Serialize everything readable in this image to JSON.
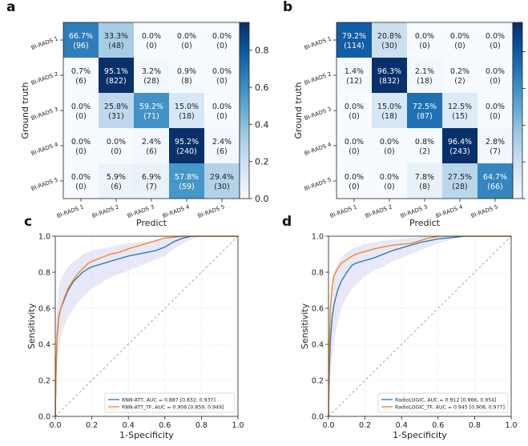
{
  "figure": {
    "background": "#ffffff"
  },
  "chart_data": [
    {
      "panel": "a",
      "type": "heatmap",
      "xlabel": "Predict",
      "ylabel": "Ground truth",
      "x_categories": [
        "BI-RADS 1",
        "BI-RADS 2",
        "BI-RADS 3",
        "BI-RADS 4",
        "BI-RADS 5"
      ],
      "y_categories": [
        "BI-RADS 1",
        "BI-RADS 2",
        "BI-RADS 3",
        "BI-RADS 4",
        "BI-RADS 5"
      ],
      "percents": [
        [
          "66.7%",
          "33.3%",
          "0.0%",
          "0.0%",
          "0.0%"
        ],
        [
          "0.7%",
          "95.1%",
          "3.2%",
          "0.9%",
          "0.0%"
        ],
        [
          "0.0%",
          "25.8%",
          "59.2%",
          "15.0%",
          "0.0%"
        ],
        [
          "0.0%",
          "0.0%",
          "2.4%",
          "95.2%",
          "2.4%"
        ],
        [
          "0.0%",
          "5.9%",
          "6.9%",
          "57.8%",
          "29.4%"
        ]
      ],
      "counts": [
        [
          "(96)",
          "(48)",
          "(0)",
          "(0)",
          "(0)"
        ],
        [
          "(6)",
          "(822)",
          "(28)",
          "(8)",
          "(0)"
        ],
        [
          "(0)",
          "(31)",
          "(71)",
          "(18)",
          "(0)"
        ],
        [
          "(0)",
          "(0)",
          "(6)",
          "(240)",
          "(6)"
        ],
        [
          "(0)",
          "(6)",
          "(7)",
          "(59)",
          "(30)"
        ]
      ],
      "values": [
        [
          0.667,
          0.333,
          0.0,
          0.0,
          0.0
        ],
        [
          0.007,
          0.951,
          0.032,
          0.009,
          0.0
        ],
        [
          0.0,
          0.258,
          0.592,
          0.15,
          0.0
        ],
        [
          0.0,
          0.0,
          0.024,
          0.952,
          0.024
        ],
        [
          0.0,
          0.059,
          0.069,
          0.578,
          0.294
        ]
      ],
      "colorbar": {
        "ticks": [
          "0.0",
          "0.2",
          "0.4",
          "0.6",
          "0.8"
        ],
        "range": [
          0,
          0.95
        ]
      },
      "colormap": "Blues"
    },
    {
      "panel": "b",
      "type": "heatmap",
      "xlabel": "Predict",
      "ylabel": "Ground truth",
      "x_categories": [
        "BI-RADS 1",
        "BI-RADS 2",
        "BI-RADS 3",
        "BI-RADS 4",
        "BI-RADS 5"
      ],
      "y_categories": [
        "BI-RADS 1",
        "BI-RADS 2",
        "BI-RADS 3",
        "BI-RADS 4",
        "BI-RADS 5"
      ],
      "percents": [
        [
          "79.2%",
          "20.8%",
          "0.0%",
          "0.0%",
          "0.0%"
        ],
        [
          "1.4%",
          "96.3%",
          "2.1%",
          "0.2%",
          "0.0%"
        ],
        [
          "0.0%",
          "15.0%",
          "72.5%",
          "12.5%",
          "0.0%"
        ],
        [
          "0.0%",
          "0.0%",
          "0.8%",
          "96.4%",
          "2.8%"
        ],
        [
          "0.0%",
          "0.0%",
          "7.8%",
          "27.5%",
          "64.7%"
        ]
      ],
      "counts": [
        [
          "(114)",
          "(30)",
          "(0)",
          "(0)",
          "(0)"
        ],
        [
          "(12)",
          "(832)",
          "(18)",
          "(2)",
          "(0)"
        ],
        [
          "(0)",
          "(18)",
          "(87)",
          "(15)",
          "(0)"
        ],
        [
          "(0)",
          "(0)",
          "(2)",
          "(243)",
          "(7)"
        ],
        [
          "(0)",
          "(0)",
          "(8)",
          "(28)",
          "(66)"
        ]
      ],
      "values": [
        [
          0.792,
          0.208,
          0.0,
          0.0,
          0.0
        ],
        [
          0.014,
          0.963,
          0.021,
          0.002,
          0.0
        ],
        [
          0.0,
          0.15,
          0.725,
          0.125,
          0.0
        ],
        [
          0.0,
          0.0,
          0.008,
          0.964,
          0.028
        ],
        [
          0.0,
          0.0,
          0.078,
          0.275,
          0.647
        ]
      ],
      "colorbar": {
        "ticks": [
          "",
          "",
          "",
          "",
          ""
        ],
        "range": [
          0,
          0.96
        ]
      },
      "colormap": "Blues"
    },
    {
      "panel": "c",
      "type": "line",
      "xlabel": "1-Specificity",
      "ylabel": "Sensitivity",
      "xlim": [
        0,
        1
      ],
      "ylim": [
        0,
        1
      ],
      "xticks": [
        "0.0",
        "0.2",
        "0.4",
        "0.6",
        "0.8",
        "1.0"
      ],
      "yticks": [
        "0.0",
        "0.2",
        "0.4",
        "0.6",
        "0.8",
        "1.0"
      ],
      "grid": true,
      "legend": "lower-right",
      "series": [
        {
          "name": "RNN-ATT, AUC = 0.887 [0.832, 0.937]",
          "color": "#1f77b4",
          "x": [
            0,
            0.005,
            0.01,
            0.02,
            0.03,
            0.05,
            0.07,
            0.1,
            0.13,
            0.15,
            0.18,
            0.2,
            0.25,
            0.3,
            0.35,
            0.4,
            0.45,
            0.5,
            0.55,
            0.6,
            0.65,
            0.7,
            0.75,
            0.8,
            0.9,
            1.0
          ],
          "y": [
            0,
            0.3,
            0.45,
            0.56,
            0.6,
            0.65,
            0.7,
            0.75,
            0.78,
            0.8,
            0.82,
            0.83,
            0.845,
            0.86,
            0.875,
            0.89,
            0.9,
            0.91,
            0.92,
            0.94,
            0.97,
            0.99,
            1.0,
            1.0,
            1.0,
            1.0
          ],
          "band_lower": [
            0,
            0.15,
            0.28,
            0.38,
            0.44,
            0.5,
            0.55,
            0.6,
            0.64,
            0.66,
            0.69,
            0.71,
            0.74,
            0.77,
            0.79,
            0.81,
            0.83,
            0.85,
            0.87,
            0.89,
            0.93,
            0.96,
            0.985,
            1.0,
            1.0,
            1.0
          ],
          "band_upper": [
            0,
            0.5,
            0.62,
            0.72,
            0.76,
            0.8,
            0.83,
            0.86,
            0.88,
            0.9,
            0.91,
            0.92,
            0.93,
            0.94,
            0.95,
            0.96,
            0.965,
            0.97,
            0.975,
            0.985,
            0.995,
            1.0,
            1.0,
            1.0,
            1.0,
            1.0
          ]
        },
        {
          "name": "RNN-ATT_TF, AUC = 0.906 [0.859, 0.949]",
          "color": "#ff7f0e",
          "x": [
            0,
            0.005,
            0.01,
            0.02,
            0.03,
            0.05,
            0.07,
            0.1,
            0.13,
            0.15,
            0.18,
            0.2,
            0.25,
            0.3,
            0.35,
            0.4,
            0.45,
            0.5,
            0.55,
            0.6,
            0.65,
            0.7,
            0.75,
            0.8,
            0.9,
            1.0
          ],
          "y": [
            0,
            0.28,
            0.44,
            0.55,
            0.6,
            0.66,
            0.71,
            0.76,
            0.8,
            0.82,
            0.85,
            0.86,
            0.88,
            0.9,
            0.91,
            0.93,
            0.945,
            0.96,
            0.975,
            0.99,
            0.995,
            1.0,
            1.0,
            1.0,
            1.0,
            1.0
          ]
        },
        {
          "name": "",
          "color": "#9a9a9a",
          "dashed": true,
          "x": [
            0,
            1
          ],
          "y": [
            0,
            1
          ]
        }
      ]
    },
    {
      "panel": "d",
      "type": "line",
      "xlabel": "1-Specificity",
      "ylabel": "Sensitivity",
      "xlim": [
        0,
        1
      ],
      "ylim": [
        0,
        1
      ],
      "xticks": [
        "0.0",
        "0.2",
        "0.4",
        "0.6",
        "0.8",
        "1.0"
      ],
      "yticks": [
        "0.0",
        "0.2",
        "0.4",
        "0.6",
        "0.8",
        "1.0"
      ],
      "grid": true,
      "legend": "lower-right",
      "series": [
        {
          "name": "RadioLOGIC, AUC = 0.912 [0.866, 0.954]",
          "color": "#1f77b4",
          "x": [
            0,
            0.005,
            0.01,
            0.02,
            0.03,
            0.05,
            0.07,
            0.1,
            0.13,
            0.15,
            0.18,
            0.2,
            0.25,
            0.3,
            0.35,
            0.4,
            0.45,
            0.5,
            0.55,
            0.6,
            0.65,
            0.7,
            0.75,
            0.8,
            0.9,
            1.0
          ],
          "y": [
            0,
            0.25,
            0.42,
            0.55,
            0.62,
            0.7,
            0.75,
            0.8,
            0.84,
            0.85,
            0.86,
            0.865,
            0.88,
            0.9,
            0.92,
            0.935,
            0.95,
            0.965,
            0.975,
            0.985,
            0.99,
            0.995,
            1.0,
            1.0,
            1.0,
            1.0
          ],
          "band_lower": [
            0,
            0.1,
            0.22,
            0.35,
            0.42,
            0.52,
            0.6,
            0.66,
            0.71,
            0.73,
            0.76,
            0.78,
            0.81,
            0.83,
            0.86,
            0.88,
            0.9,
            0.92,
            0.94,
            0.96,
            0.975,
            0.99,
            1.0,
            1.0,
            1.0,
            1.0
          ],
          "band_upper": [
            0,
            0.5,
            0.65,
            0.75,
            0.8,
            0.85,
            0.88,
            0.91,
            0.93,
            0.94,
            0.95,
            0.955,
            0.965,
            0.975,
            0.98,
            0.985,
            0.99,
            0.995,
            1.0,
            1.0,
            1.0,
            1.0,
            1.0,
            1.0,
            1.0,
            1.0
          ]
        },
        {
          "name": "RadioLOGIC_TF, AUC = 0.945 [0.908, 0.977]",
          "color": "#ff7f0e",
          "x": [
            0,
            0.005,
            0.01,
            0.02,
            0.03,
            0.05,
            0.07,
            0.1,
            0.13,
            0.15,
            0.18,
            0.2,
            0.25,
            0.3,
            0.35,
            0.4,
            0.45,
            0.5,
            0.55,
            0.6,
            0.65,
            0.7,
            0.75,
            0.8,
            0.9,
            1.0
          ],
          "y": [
            0,
            0.4,
            0.6,
            0.72,
            0.78,
            0.82,
            0.85,
            0.87,
            0.89,
            0.9,
            0.91,
            0.915,
            0.93,
            0.94,
            0.95,
            0.955,
            0.96,
            0.975,
            0.99,
            1.0,
            1.0,
            1.0,
            1.0,
            1.0,
            1.0,
            1.0
          ]
        },
        {
          "name": "",
          "color": "#9a9a9a",
          "dashed": true,
          "x": [
            0,
            1
          ],
          "y": [
            0,
            1
          ]
        }
      ]
    }
  ]
}
